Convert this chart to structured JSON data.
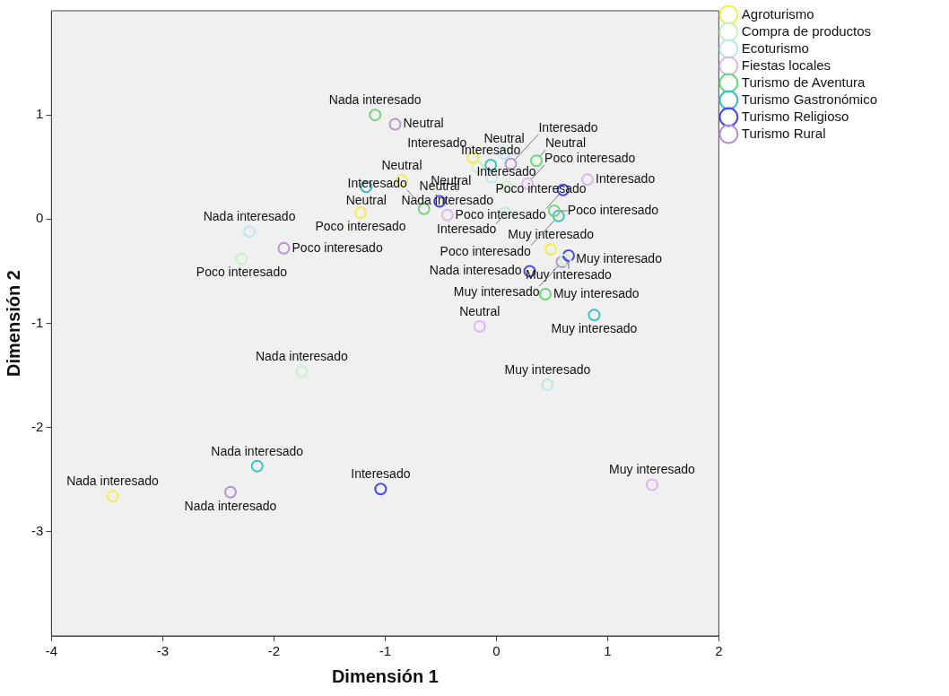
{
  "chart_data": {
    "type": "scatter",
    "xlabel": "Dimensión 1",
    "ylabel": "Dimensión 2",
    "xlim": [
      -4,
      2
    ],
    "xticks": [
      -4,
      -3,
      -2,
      -1,
      0,
      1,
      2
    ],
    "ylim": [
      -4,
      2
    ],
    "yticks": [
      -3,
      -2,
      -1,
      0,
      1
    ],
    "grid": false,
    "legend": "right",
    "marker": "circle",
    "series": [
      {
        "name": "Agroturismo",
        "color": "#f2ee50",
        "x": [
          -3.45,
          -1.22,
          -0.85,
          -0.21,
          0.49
        ],
        "values": [
          -2.66,
          0.06,
          0.37,
          0.59,
          -0.29
        ]
      },
      {
        "name": "Compra de productos",
        "color": "#c8f2c4",
        "x": [
          -1.75,
          -2.29,
          -0.17,
          0.09,
          0.62
        ],
        "values": [
          -1.46,
          -0.38,
          0.5,
          0.31,
          -0.39
        ]
      },
      {
        "name": "Ecoturismo",
        "color": "#bde8ec",
        "x": [
          -2.22,
          -0.04,
          0.07,
          0.08,
          0.46
        ],
        "values": [
          -0.12,
          0.4,
          0.63,
          0.06,
          -1.59
        ]
      },
      {
        "name": "Fiestas locales",
        "color": "#dcb8f0",
        "x": [
          -0.44,
          0.28,
          -0.15,
          0.82,
          1.4
        ],
        "values": [
          0.04,
          0.34,
          -1.03,
          0.38,
          -2.55
        ]
      },
      {
        "name": "Turismo de Aventura",
        "color": "#6ed87a",
        "x": [
          -1.09,
          0.52,
          0.36,
          -0.65,
          0.44
        ],
        "values": [
          1.0,
          0.08,
          0.56,
          0.1,
          -0.72
        ]
      },
      {
        "name": "Turismo Gastronómico",
        "color": "#3ebfc4",
        "x": [
          -2.15,
          0.56,
          -1.17,
          -0.05,
          0.88
        ],
        "values": [
          -2.37,
          0.03,
          0.31,
          0.52,
          -0.92
        ]
      },
      {
        "name": "Turismo Religioso",
        "color": "#4848f0",
        "x": [
          0.3,
          0.6,
          -0.51,
          -1.04,
          0.65
        ],
        "values": [
          -0.5,
          0.28,
          0.17,
          -2.59,
          -0.35
        ]
      },
      {
        "name": "Turismo Rural",
        "color": "#b496cc",
        "x": [
          -2.39,
          -1.91,
          -0.91,
          0.13,
          0.59
        ],
        "values": [
          -2.62,
          -0.28,
          0.91,
          0.53,
          -0.41
        ]
      }
    ],
    "annotations": [
      {
        "text": "Nada interesado",
        "x": -3.45,
        "y": -2.66
      },
      {
        "text": "Poco interesado",
        "x": -1.22,
        "y": 0.06
      },
      {
        "text": "Neutral",
        "x": -0.85,
        "y": 0.37
      },
      {
        "text": "Interesado",
        "x": -0.21,
        "y": 0.59
      },
      {
        "text": "Muy interesado",
        "x": 0.49,
        "y": -0.29
      },
      {
        "text": "Nada interesado",
        "x": -1.75,
        "y": -1.46
      },
      {
        "text": "Poco interesado",
        "x": -2.29,
        "y": -0.38
      },
      {
        "text": "Neutral",
        "x": -0.17,
        "y": 0.5
      },
      {
        "text": "Interesado",
        "x": 0.09,
        "y": 0.31
      },
      {
        "text": "Muy interesado",
        "x": 0.62,
        "y": -0.39
      },
      {
        "text": "Nada interesado",
        "x": -2.22,
        "y": -0.12
      },
      {
        "text": "Poco interesado",
        "x": -0.04,
        "y": 0.4
      },
      {
        "text": "Neutral",
        "x": 0.07,
        "y": 0.63
      },
      {
        "text": "Interesado",
        "x": 0.08,
        "y": 0.06
      },
      {
        "text": "Muy interesado",
        "x": 0.46,
        "y": -1.59
      },
      {
        "text": "Nada interesado",
        "x": -0.44,
        "y": 0.04
      },
      {
        "text": "Poco interesado",
        "x": 0.28,
        "y": 0.34
      },
      {
        "text": "Neutral",
        "x": -0.15,
        "y": -1.03
      },
      {
        "text": "Interesado",
        "x": 0.82,
        "y": 0.38
      },
      {
        "text": "Muy interesado",
        "x": 1.4,
        "y": -2.55
      },
      {
        "text": "Nada interesado",
        "x": -1.09,
        "y": 1.0
      },
      {
        "text": "Poco interesado",
        "x": 0.52,
        "y": 0.08
      },
      {
        "text": "Neutral",
        "x": 0.36,
        "y": 0.56
      },
      {
        "text": "Interesado",
        "x": -0.65,
        "y": 0.1
      },
      {
        "text": "Muy interesado",
        "x": 0.44,
        "y": -0.72
      },
      {
        "text": "Nada interesado",
        "x": -2.15,
        "y": -2.37
      },
      {
        "text": "Poco interesado",
        "x": 0.56,
        "y": 0.03
      },
      {
        "text": "Neutral",
        "x": -1.17,
        "y": 0.31
      },
      {
        "text": "Interesado",
        "x": -0.05,
        "y": 0.52
      },
      {
        "text": "Muy interesado",
        "x": 0.88,
        "y": -0.92
      },
      {
        "text": "Nada interesado",
        "x": 0.3,
        "y": -0.5
      },
      {
        "text": "Poco interesado",
        "x": 0.6,
        "y": 0.28
      },
      {
        "text": "Neutral",
        "x": -0.51,
        "y": 0.17
      },
      {
        "text": "Interesado",
        "x": -1.04,
        "y": -2.59
      },
      {
        "text": "Muy interesado",
        "x": 0.65,
        "y": -0.35
      },
      {
        "text": "Nada interesado",
        "x": -2.39,
        "y": -2.62
      },
      {
        "text": "Poco interesado",
        "x": -1.91,
        "y": -0.28
      },
      {
        "text": "Neutral",
        "x": -0.91,
        "y": 0.91
      },
      {
        "text": "Interesado",
        "x": 0.13,
        "y": 0.53
      },
      {
        "text": "Muy interesado",
        "x": 0.59,
        "y": -0.41
      }
    ]
  }
}
